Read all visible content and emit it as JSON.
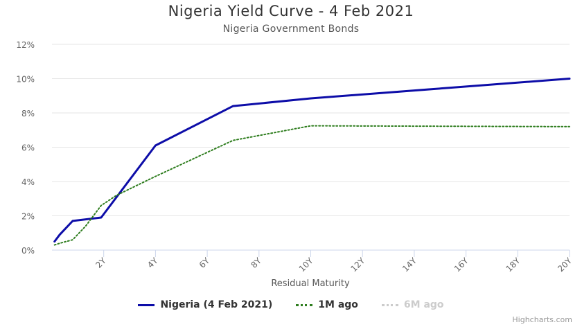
{
  "chart_data": {
    "type": "line",
    "title": "Nigeria Yield Curve - 4 Feb 2021",
    "subtitle": "Nigeria Government Bonds",
    "xlabel": "Residual Maturity",
    "ylabel": "",
    "xlim": [
      0,
      20
    ],
    "ylim": [
      0,
      12
    ],
    "x_ticks": [
      2,
      4,
      6,
      8,
      10,
      12,
      14,
      16,
      18,
      20
    ],
    "x_tick_labels": [
      "2Y",
      "4Y",
      "6Y",
      "8Y",
      "10Y",
      "12Y",
      "14Y",
      "16Y",
      "18Y",
      "20Y"
    ],
    "y_ticks": [
      0,
      2,
      4,
      6,
      8,
      10,
      12
    ],
    "y_tick_labels": [
      "0%",
      "2%",
      "4%",
      "6%",
      "8%",
      "10%",
      "12%"
    ],
    "grid": true,
    "legend_position": "bottom",
    "series": [
      {
        "name": "Nigeria (4 Feb 2021)",
        "color": "#0d0da8",
        "style": "solid",
        "visible": true,
        "x": [
          0.1,
          0.3,
          0.8,
          1.9,
          4.0,
          7.0,
          10.0,
          20.0
        ],
        "y": [
          0.5,
          0.9,
          1.7,
          1.9,
          6.1,
          8.4,
          8.85,
          10.0
        ]
      },
      {
        "name": "1M ago",
        "color": "#2e7d1e",
        "style": "dotted",
        "visible": true,
        "x": [
          0.1,
          0.3,
          0.8,
          1.3,
          1.9,
          2.5,
          4.0,
          7.0,
          10.0,
          20.0
        ],
        "y": [
          0.3,
          0.4,
          0.6,
          1.4,
          2.6,
          3.2,
          4.3,
          6.4,
          7.25,
          7.2
        ]
      },
      {
        "name": "6M ago",
        "color": "#cccccc",
        "style": "dotted",
        "visible": false,
        "x": [],
        "y": []
      }
    ],
    "credit": "Highcharts.com"
  }
}
